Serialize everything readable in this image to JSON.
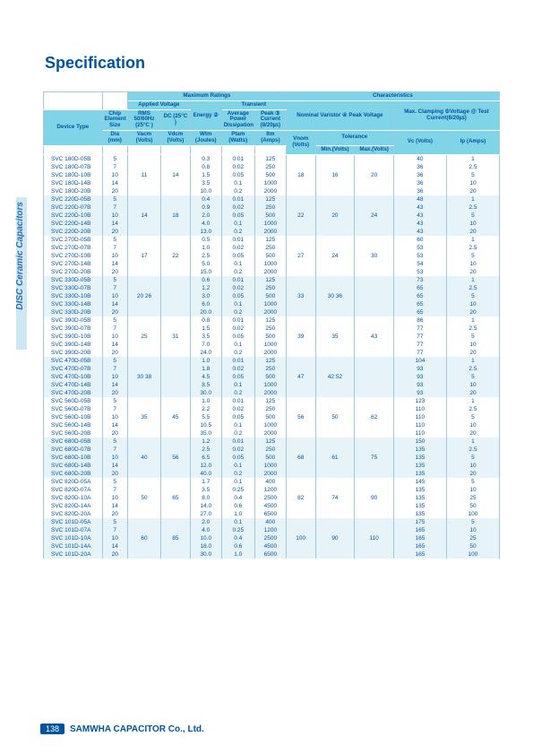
{
  "title": "Specification",
  "side_tab": "DISC Ceramic Capacitors",
  "page_num": "138",
  "company": "SAMWHA CAPACITOR Co., Ltd.",
  "head": {
    "max_ratings": "Maximum Ratings",
    "characteristics": "Characteristics",
    "chip": "Chip Element Size",
    "applied_v": "Applied Voltage",
    "transient": "Transient",
    "device_type": "Device Type",
    "rms": "RMS 50/60Hz (25°C )",
    "dc": "DC (25°C )",
    "energy": "Energy ②",
    "avg_pwr": "Average Power Dissipation",
    "peak_c": "Peak ③ Current (8/20㎲)",
    "nom_var": "Nominal Varistor ④ Peak Voltage",
    "max_clamp": "Max. Clamping ⑤Voltage @ Test Current(8/20㎲)",
    "dia": "Dia (mm)",
    "vacm": "Vacm (Volts)",
    "vdcm": "Vdcm (Volts)",
    "wtm": "Wtm (Joules)",
    "ptam": "Ptam (Watts)",
    "itm": "Itm (Amps)",
    "vnom": "Vnom (Volts)",
    "tolerance": "Tolerance",
    "min": "Min.(Volts)",
    "max": "Max.(Volts)",
    "vc": "Vc (Volts)",
    "ip": "Ip (Amps)"
  },
  "groups": [
    {
      "shade": false,
      "vacm": "11",
      "vdcm": "14",
      "vnom": "18",
      "min": "16",
      "max": "20",
      "rows": [
        {
          "dt": "SVC 180D-05B",
          "dia": "5",
          "w": "0.3",
          "p": "0.01",
          "i": "125",
          "vc": "40",
          "ip": "1"
        },
        {
          "dt": "SVC 180D-07B",
          "dia": "7",
          "w": "0.8",
          "p": "0.02",
          "i": "250",
          "vc": "36",
          "ip": "2.5"
        },
        {
          "dt": "SVC 180D-10B",
          "dia": "10",
          "w": "1.5",
          "p": "0.05",
          "i": "500",
          "vc": "36",
          "ip": "5"
        },
        {
          "dt": "SVC 180D-14B",
          "dia": "14",
          "w": "3.5",
          "p": "0.1",
          "i": "1000",
          "vc": "36",
          "ip": "10"
        },
        {
          "dt": "SVC 180D-20B",
          "dia": "20",
          "w": "10.0",
          "p": "0.2",
          "i": "2000",
          "vc": "36",
          "ip": "20"
        }
      ]
    },
    {
      "shade": true,
      "vacm": "14",
      "vdcm": "18",
      "vnom": "22",
      "min": "20",
      "max": "24",
      "rows": [
        {
          "dt": "SVC 220D-05B",
          "dia": "5",
          "w": "0.4",
          "p": "0.01",
          "i": "125",
          "vc": "48",
          "ip": "1"
        },
        {
          "dt": "SVC 220D-07B",
          "dia": "7",
          "w": "0.9",
          "p": "0.02",
          "i": "250",
          "vc": "43",
          "ip": "2.5"
        },
        {
          "dt": "SVC 220D-10B",
          "dia": "10",
          "w": "2.0",
          "p": "0.05",
          "i": "500",
          "vc": "43",
          "ip": "5"
        },
        {
          "dt": "SVC 220D-14B",
          "dia": "14",
          "w": "4.0",
          "p": "0.1",
          "i": "1000",
          "vc": "43",
          "ip": "10"
        },
        {
          "dt": "SVC 220D-20B",
          "dia": "20",
          "w": "13.0",
          "p": "0.2",
          "i": "2000",
          "vc": "43",
          "ip": "20"
        }
      ]
    },
    {
      "shade": false,
      "vacm": "17",
      "vdcm": "22",
      "vnom": "27",
      "min": "24",
      "max": "30",
      "rows": [
        {
          "dt": "SVC 270D-05B",
          "dia": "5",
          "w": "0.5",
          "p": "0.01",
          "i": "125",
          "vc": "60",
          "ip": "1"
        },
        {
          "dt": "SVC 270D-07B",
          "dia": "7",
          "w": "1.0",
          "p": "0.02",
          "i": "250",
          "vc": "53",
          "ip": "2.5"
        },
        {
          "dt": "SVC 270D-10B",
          "dia": "10",
          "w": "2.5",
          "p": "0.05",
          "i": "500",
          "vc": "53",
          "ip": "5"
        },
        {
          "dt": "SVC 270D-14B",
          "dia": "14",
          "w": "5.0",
          "p": "0.1",
          "i": "1000",
          "vc": "54",
          "ip": "10"
        },
        {
          "dt": "SVC 270D-20B",
          "dia": "20",
          "w": "15.0",
          "p": "0.2",
          "i": "2000",
          "vc": "53",
          "ip": "20"
        }
      ]
    },
    {
      "shade": true,
      "vacm": "20 26",
      "vdcm": "",
      "vnom": "33",
      "min": "30 36",
      "max": "",
      "rows": [
        {
          "dt": "SVC 330D-05B",
          "dia": "5",
          "w": "0.6",
          "p": "0.01",
          "i": "125",
          "vc": "73",
          "ip": "1"
        },
        {
          "dt": "SVC 330D-07B",
          "dia": "7",
          "w": "1.2",
          "p": "0.02",
          "i": "250",
          "vc": "65",
          "ip": "2.5"
        },
        {
          "dt": "SVC 330D-10B",
          "dia": "10",
          "w": "3.0",
          "p": "0.05",
          "i": "500",
          "vc": "65",
          "ip": "5"
        },
        {
          "dt": "SVC 330D-14B",
          "dia": "14",
          "w": "6.0",
          "p": "0.1",
          "i": "1000",
          "vc": "65",
          "ip": "10"
        },
        {
          "dt": "SVC 330D-20B",
          "dia": "20",
          "w": "20.0",
          "p": "0.2",
          "i": "2000",
          "vc": "65",
          "ip": "20"
        }
      ]
    },
    {
      "shade": false,
      "vacm": "25",
      "vdcm": "31",
      "vnom": "39",
      "min": "35",
      "max": "43",
      "rows": [
        {
          "dt": "SVC 390D-05B",
          "dia": "5",
          "w": "0.8",
          "p": "0.01",
          "i": "125",
          "vc": "86",
          "ip": "1"
        },
        {
          "dt": "SVC 390D-07B",
          "dia": "7",
          "w": "1.5",
          "p": "0.02",
          "i": "250",
          "vc": "77",
          "ip": "2.5"
        },
        {
          "dt": "SVC 390D-10B",
          "dia": "10",
          "w": "3.5",
          "p": "0.05",
          "i": "500",
          "vc": "77",
          "ip": "5"
        },
        {
          "dt": "SVC 390D-14B",
          "dia": "14",
          "w": "7.0",
          "p": "0.1",
          "i": "1000",
          "vc": "77",
          "ip": "10"
        },
        {
          "dt": "SVC 390D-20B",
          "dia": "20",
          "w": "24.0",
          "p": "0.2",
          "i": "2000",
          "vc": "77",
          "ip": "20"
        }
      ]
    },
    {
      "shade": true,
      "vacm": "30 38",
      "vdcm": "",
      "vnom": "47",
      "min": "42 52",
      "max": "",
      "rows": [
        {
          "dt": "SVC 470D-05B",
          "dia": "5",
          "w": "1.0",
          "p": "0.01",
          "i": "125",
          "vc": "104",
          "ip": "1"
        },
        {
          "dt": "SVC 470D-07B",
          "dia": "7",
          "w": "1.8",
          "p": "0.02",
          "i": "250",
          "vc": "93",
          "ip": "2.5"
        },
        {
          "dt": "SVC 470D-10B",
          "dia": "10",
          "w": "4.5",
          "p": "0.05",
          "i": "500",
          "vc": "93",
          "ip": "5"
        },
        {
          "dt": "SVC 470D-14B",
          "dia": "14",
          "w": "8.5",
          "p": "0.1",
          "i": "1000",
          "vc": "93",
          "ip": "10"
        },
        {
          "dt": "SVC 470D-20B",
          "dia": "20",
          "w": "30.0",
          "p": "0.2",
          "i": "2000",
          "vc": "93",
          "ip": "20"
        }
      ]
    },
    {
      "shade": false,
      "vacm": "35",
      "vdcm": "45",
      "vnom": "56",
      "min": "50",
      "max": "62",
      "rows": [
        {
          "dt": "SVC 560D-05B",
          "dia": "5",
          "w": "1.0",
          "p": "0.01",
          "i": "125",
          "vc": "123",
          "ip": "1"
        },
        {
          "dt": "SVC 560D-07B",
          "dia": "7",
          "w": "2.2",
          "p": "0.02",
          "i": "250",
          "vc": "110",
          "ip": "2.5"
        },
        {
          "dt": "SVC 560D-10B",
          "dia": "10",
          "w": "5.5",
          "p": "0.05",
          "i": "500",
          "vc": "110",
          "ip": "5"
        },
        {
          "dt": "SVC 560D-14B",
          "dia": "14",
          "w": "10.5",
          "p": "0.1",
          "i": "1000",
          "vc": "110",
          "ip": "10"
        },
        {
          "dt": "SVC 560D-20B",
          "dia": "20",
          "w": "35.0",
          "p": "0.2",
          "i": "2000",
          "vc": "110",
          "ip": "20"
        }
      ]
    },
    {
      "shade": true,
      "vacm": "40",
      "vdcm": "56",
      "vnom": "68",
      "min": "61",
      "max": "75",
      "rows": [
        {
          "dt": "SVC 680D-05B",
          "dia": "5",
          "w": "1.2",
          "p": "0.01",
          "i": "125",
          "vc": "150",
          "ip": "1"
        },
        {
          "dt": "SVC 680D-07B",
          "dia": "7",
          "w": "2.5",
          "p": "0.02",
          "i": "250",
          "vc": "135",
          "ip": "2.5"
        },
        {
          "dt": "SVC 680D-10B",
          "dia": "10",
          "w": "6.5",
          "p": "0.05",
          "i": "500",
          "vc": "135",
          "ip": "5"
        },
        {
          "dt": "SVC 680D-14B",
          "dia": "14",
          "w": "12.0",
          "p": "0.1",
          "i": "1000",
          "vc": "135",
          "ip": "10"
        },
        {
          "dt": "SVC 680D-20B",
          "dia": "20",
          "w": "40.0",
          "p": "0.2",
          "i": "2000",
          "vc": "135",
          "ip": "20"
        }
      ]
    },
    {
      "shade": false,
      "vacm": "50",
      "vdcm": "65",
      "vnom": "82",
      "min": "74",
      "max": "90",
      "rows": [
        {
          "dt": "SVC 820D-05A",
          "dia": "5",
          "w": "1.7",
          "p": "0.1",
          "i": "400",
          "vc": "145",
          "ip": "5"
        },
        {
          "dt": "SVC 820D-07A",
          "dia": "7",
          "w": "3.5",
          "p": "0.25",
          "i": "1200",
          "vc": "135",
          "ip": "10"
        },
        {
          "dt": "SVC 820D-10A",
          "dia": "10",
          "w": "8.0",
          "p": "0.4",
          "i": "2500",
          "vc": "135",
          "ip": "25"
        },
        {
          "dt": "SVC 820D-14A",
          "dia": "14",
          "w": "14.0",
          "p": "0.6",
          "i": "4500",
          "vc": "135",
          "ip": "50"
        },
        {
          "dt": "SVC 820D-20A",
          "dia": "20",
          "w": "27.0",
          "p": "1.0",
          "i": "6500",
          "vc": "135",
          "ip": "100"
        }
      ]
    },
    {
      "shade": true,
      "vacm": "60",
      "vdcm": "85",
      "vnom": "100",
      "min": "90",
      "max": "110",
      "rows": [
        {
          "dt": "SVC 101D-05A",
          "dia": "5",
          "w": "2.0",
          "p": "0.1",
          "i": "400",
          "vc": "175",
          "ip": "5"
        },
        {
          "dt": "SVC 101D-07A",
          "dia": "7",
          "w": "4.0",
          "p": "0.25",
          "i": "1200",
          "vc": "165",
          "ip": "10"
        },
        {
          "dt": "SVC 101D-10A",
          "dia": "10",
          "w": "10.0",
          "p": "0.4",
          "i": "2500",
          "vc": "165",
          "ip": "25"
        },
        {
          "dt": "SVC 101D-14A",
          "dia": "14",
          "w": "18.0",
          "p": "0.6",
          "i": "4500",
          "vc": "165",
          "ip": "50"
        },
        {
          "dt": "SVC 101D-20A",
          "dia": "20",
          "w": "30.0",
          "p": "1.0",
          "i": "6500",
          "vc": "165",
          "ip": "100"
        }
      ]
    }
  ]
}
